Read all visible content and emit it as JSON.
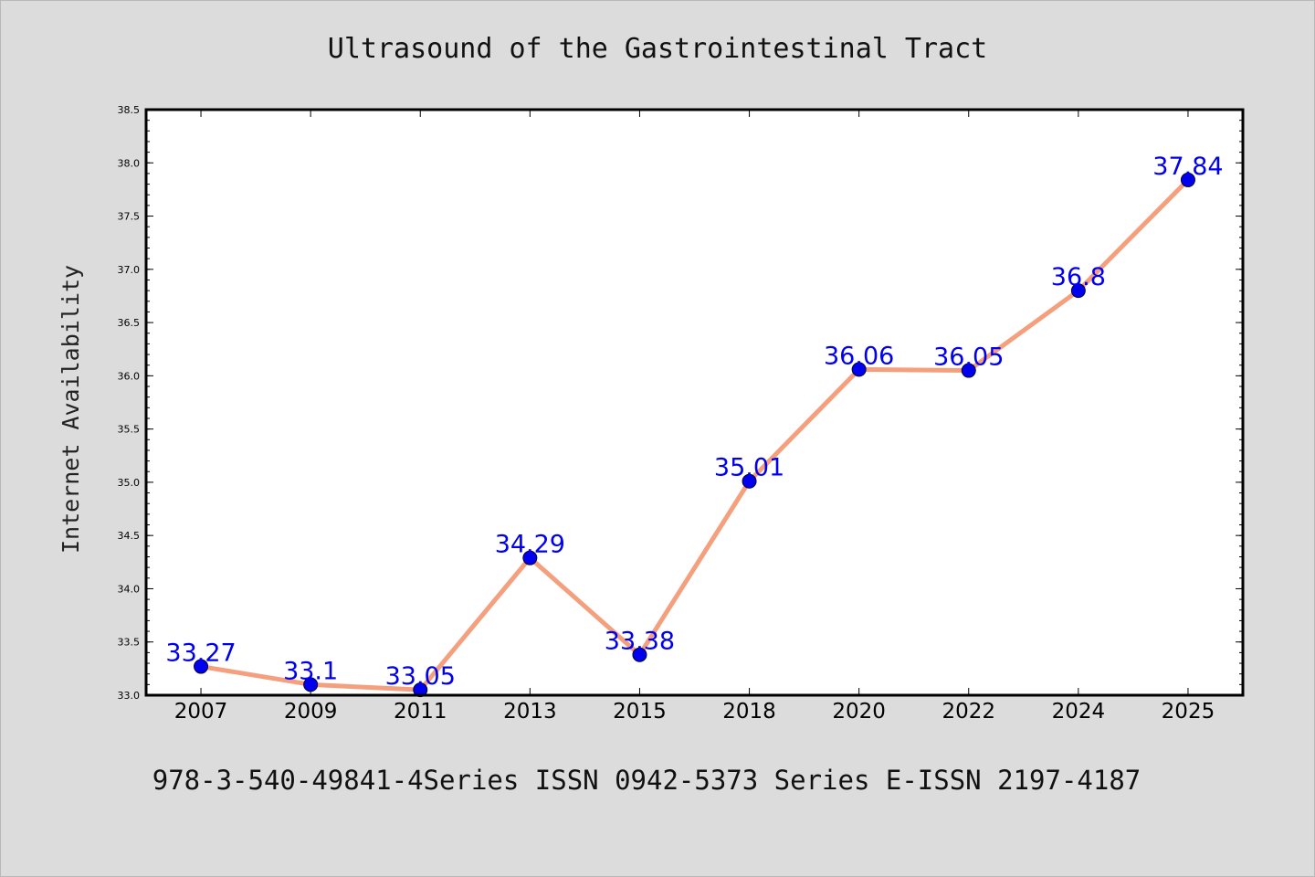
{
  "chart_data": {
    "type": "line",
    "title": "Ultrasound of the Gastrointestinal Tract",
    "xlabel": "",
    "ylabel": "Internet Availability",
    "categories": [
      "2007",
      "2009",
      "2011",
      "2013",
      "2015",
      "2018",
      "2020",
      "2022",
      "2024",
      "2025"
    ],
    "series": [
      {
        "values": [
          33.27,
          33.1,
          33.05,
          34.29,
          33.38,
          35.01,
          36.06,
          36.05,
          36.8,
          37.84
        ],
        "labels": [
          "33.27",
          "33.1",
          "33.05",
          "34.29",
          "33.38",
          "35.01",
          "36.06",
          "36.05",
          "36.8",
          "37.84"
        ]
      }
    ],
    "ylim": [
      33.0,
      38.5
    ],
    "yticks": [
      "33.0",
      "33.5",
      "34.0",
      "34.5",
      "35.0",
      "35.5",
      "36.0",
      "36.5",
      "37.0",
      "37.5",
      "38.0",
      "38.5"
    ],
    "grid": false,
    "legend": "none",
    "colors": {
      "line": "#f4a07e",
      "marker": "#0000ee",
      "label": "#0000ee",
      "background": "#dcdcdc",
      "plot_area": "#ffffff"
    }
  },
  "footer": {
    "text": "978-3-540-49841-4Series ISSN 0942-5373 Series E-ISSN 2197-4187"
  }
}
